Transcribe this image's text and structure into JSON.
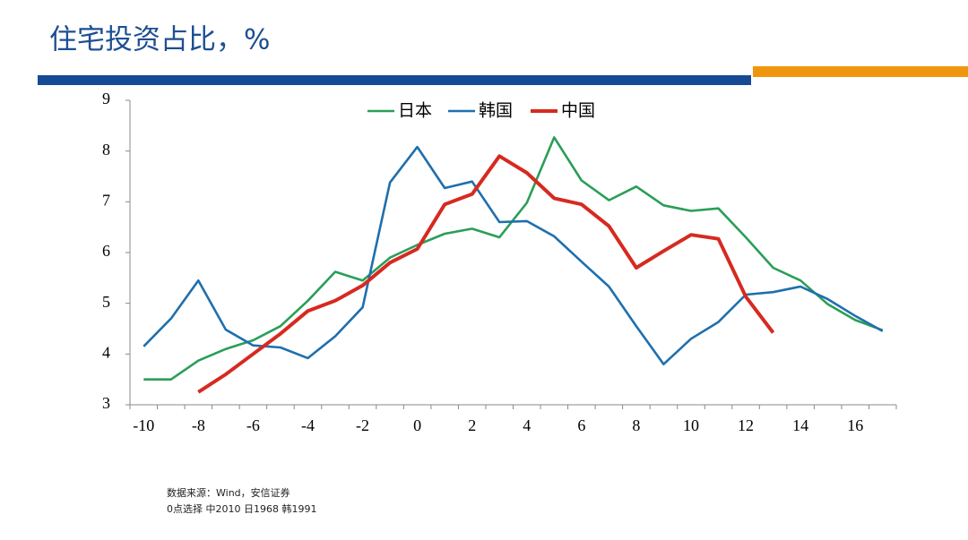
{
  "header": {
    "title": "住宅投资占比，%"
  },
  "chart_data": {
    "type": "line",
    "categories": [
      "-10",
      null,
      "-8",
      null,
      "-6",
      null,
      "-4",
      null,
      "-2",
      null,
      "0",
      null,
      "2",
      null,
      "4",
      null,
      "6",
      null,
      "8",
      null,
      "10",
      null,
      "12",
      null,
      "14",
      null,
      "16",
      null
    ],
    "series": [
      {
        "name": "日本",
        "color": "#2a9e58",
        "values": [
          3.5,
          3.5,
          3.87,
          4.1,
          4.27,
          4.55,
          5.05,
          5.62,
          5.45,
          5.9,
          6.15,
          6.37,
          6.47,
          6.3,
          6.98,
          8.27,
          7.42,
          7.03,
          7.3,
          6.93,
          6.82,
          6.87,
          6.3,
          5.7,
          5.45,
          4.98,
          4.67,
          4.47
        ]
      },
      {
        "name": "韩国",
        "color": "#1f6fad",
        "values": [
          4.15,
          4.7,
          5.45,
          4.48,
          4.17,
          4.13,
          3.92,
          4.35,
          4.92,
          7.38,
          8.08,
          7.27,
          7.4,
          6.6,
          6.62,
          6.32,
          5.82,
          5.33,
          4.55,
          3.8,
          4.3,
          4.63,
          5.17,
          5.22,
          5.33,
          5.08,
          4.75,
          4.45
        ]
      },
      {
        "name": "中国",
        "color": "#d62a20",
        "values": [
          null,
          null,
          3.25,
          3.6,
          4.0,
          4.4,
          4.85,
          5.05,
          5.35,
          5.8,
          6.07,
          6.95,
          7.15,
          7.9,
          7.57,
          7.07,
          6.95,
          6.52,
          5.7,
          6.03,
          6.35,
          6.27,
          5.13,
          4.42,
          null,
          null,
          null,
          null
        ]
      }
    ],
    "ylim": [
      3,
      9
    ],
    "yticks": [
      3,
      4,
      5,
      6,
      7,
      8,
      9
    ],
    "grid": false,
    "legend": "top"
  },
  "notes": [
    "数据来源：Wind，安信证券",
    "0点选择 中2010 日1968 韩1991"
  ]
}
